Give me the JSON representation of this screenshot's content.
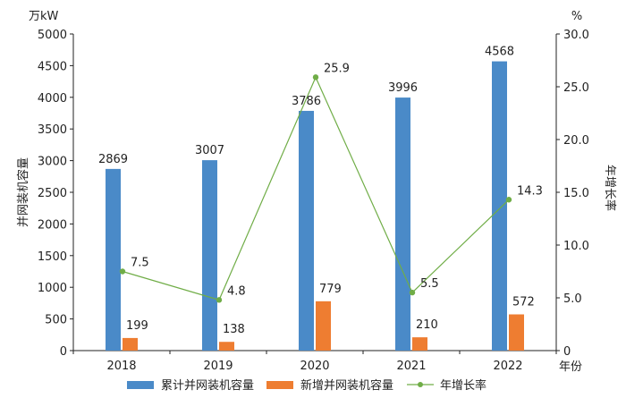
{
  "chart_data": {
    "type": "bar",
    "categories": [
      "2018",
      "2019",
      "2020",
      "2021",
      "2022"
    ],
    "series": [
      {
        "name": "累计并网装机容量",
        "type": "bar",
        "axis": "left",
        "color": "#4a8ac8",
        "values": [
          2869,
          3007,
          3786,
          3996,
          4568
        ]
      },
      {
        "name": "新增并网装机容量",
        "type": "bar",
        "axis": "left",
        "color": "#ee7d31",
        "values": [
          199,
          138,
          779,
          210,
          572
        ]
      },
      {
        "name": "年增长率",
        "type": "line",
        "axis": "right",
        "color": "#70ad47",
        "values": [
          7.5,
          4.8,
          25.9,
          5.5,
          14.3
        ]
      }
    ],
    "left_axis": {
      "label": "并网装机容量",
      "unit": "万kW",
      "min": 0,
      "max": 5000,
      "step": 500,
      "tick_labels": [
        "0",
        "500",
        "1000",
        "1500",
        "2000",
        "2500",
        "3000",
        "3500",
        "4000",
        "4500",
        "5000"
      ]
    },
    "right_axis": {
      "label": "年增长率",
      "unit": "%",
      "min": 0,
      "max": 30,
      "step": 5,
      "tick_labels": [
        "0",
        "5.0",
        "10.0",
        "15.0",
        "20.0",
        "25.0",
        "30.0"
      ]
    },
    "x_unit": "年份",
    "value_labels": {
      "cumulative": [
        "2869",
        "3007",
        "3786",
        "3996",
        "4568"
      ],
      "new": [
        "199",
        "138",
        "779",
        "210",
        "572"
      ],
      "growth": [
        "7.5",
        "4.8",
        "25.9",
        "5.5",
        "14.3"
      ]
    },
    "legend": {
      "position": "bottom"
    },
    "grid": false
  }
}
